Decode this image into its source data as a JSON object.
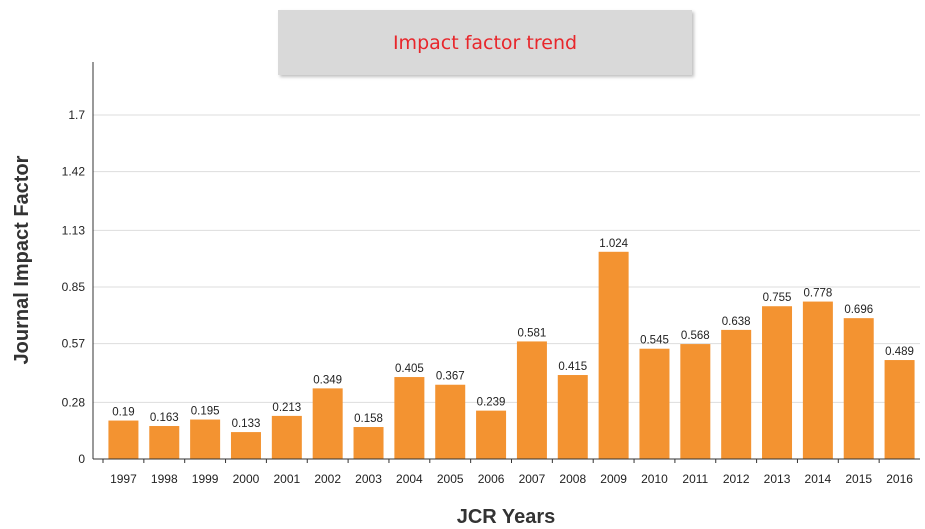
{
  "chart_data": {
    "type": "bar",
    "title": "Impact factor trend",
    "xlabel": "JCR Years",
    "ylabel": "Journal Impact Factor",
    "categories": [
      "1997",
      "1998",
      "1999",
      "2000",
      "2001",
      "2002",
      "2003",
      "2004",
      "2005",
      "2006",
      "2007",
      "2008",
      "2009",
      "2010",
      "2011",
      "2012",
      "2013",
      "2014",
      "2015",
      "2016"
    ],
    "values": [
      0.19,
      0.163,
      0.195,
      0.133,
      0.213,
      0.349,
      0.158,
      0.405,
      0.367,
      0.239,
      0.581,
      0.415,
      1.024,
      0.545,
      0.568,
      0.638,
      0.755,
      0.778,
      0.696,
      0.489
    ],
    "data_labels": [
      "0.19",
      "0.163",
      "0.195",
      "0.133",
      "0.213",
      "0.349",
      "0.158",
      "0.405",
      "0.367",
      "0.239",
      "0.581",
      "0.415",
      "1.024",
      "0.545",
      "0.568",
      "0.638",
      "0.755",
      "0.778",
      "0.696",
      "0.489"
    ],
    "y_ticks": [
      0,
      0.28,
      0.57,
      0.85,
      1.13,
      1.42,
      1.7
    ],
    "y_tick_labels": [
      "0",
      "0.28",
      "0.57",
      "0.85",
      "1.13",
      "1.42",
      "1.7"
    ],
    "ylim": [
      0,
      1.7
    ],
    "grid": true,
    "legend": "none",
    "bar_color": "#f39331",
    "title_color": "#e8262b"
  }
}
